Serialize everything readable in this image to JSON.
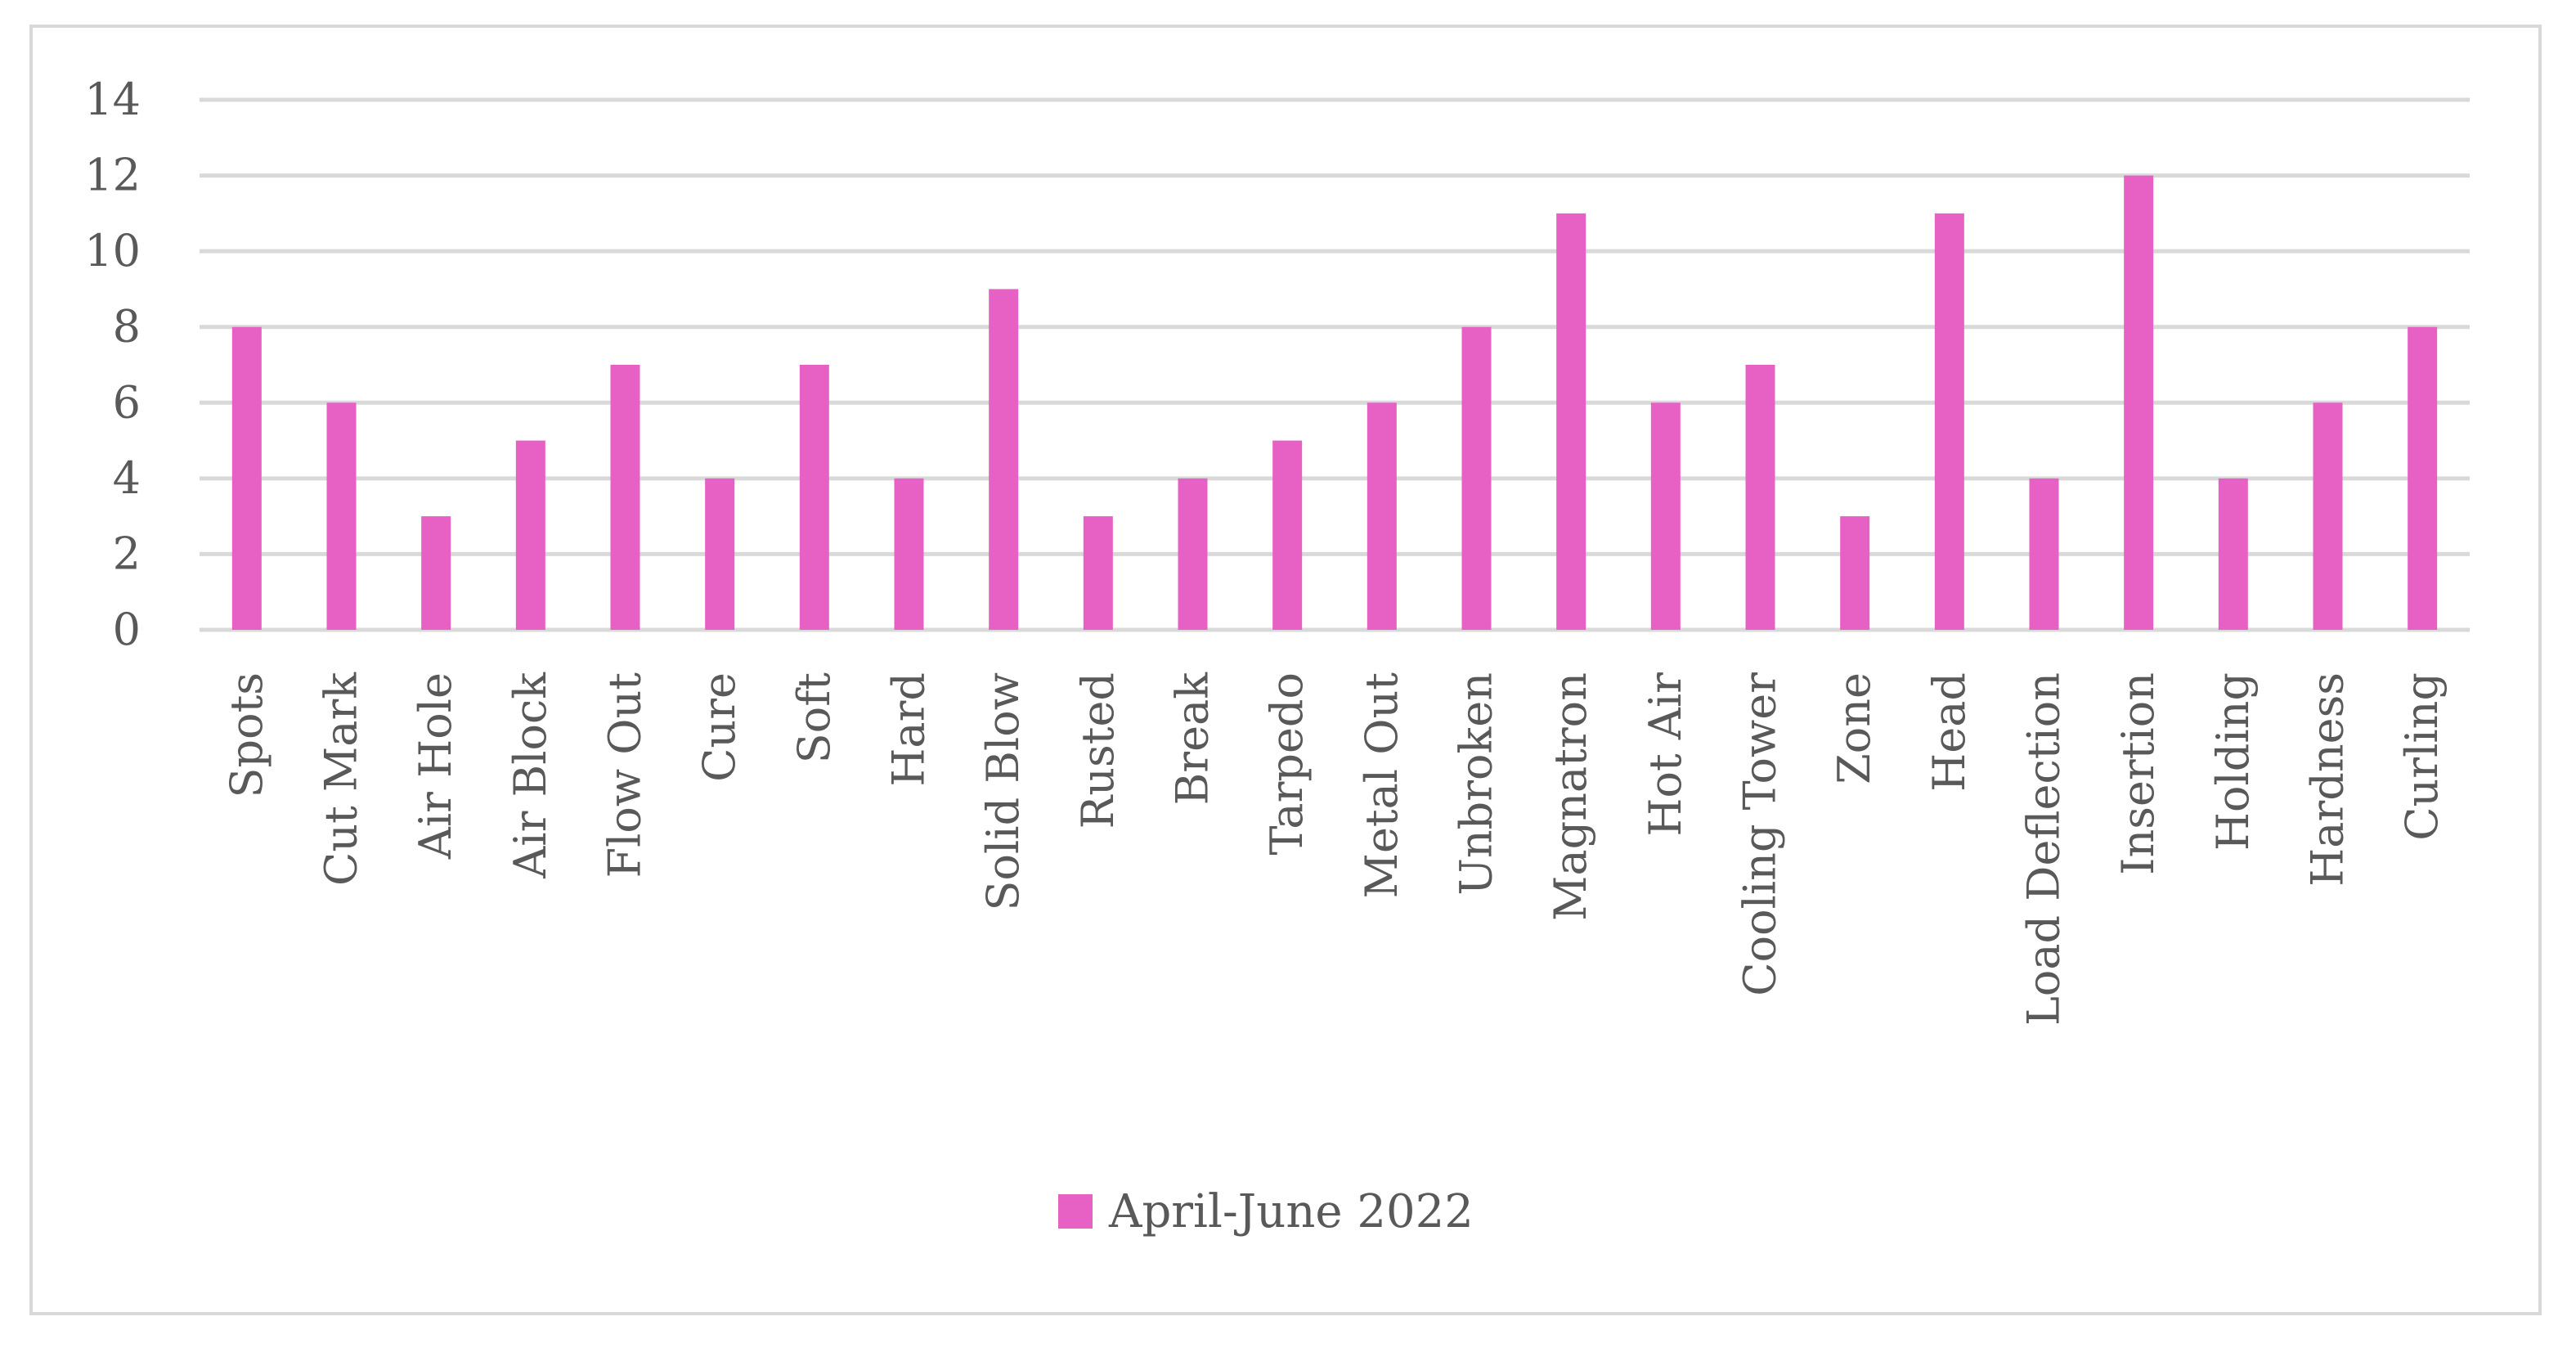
{
  "chart_data": {
    "type": "bar",
    "title": "",
    "xlabel": "",
    "ylabel": "",
    "ylim": [
      0,
      14
    ],
    "yticks": [
      0,
      2,
      4,
      6,
      8,
      10,
      12,
      14
    ],
    "grid": true,
    "legend_position": "bottom",
    "categories": [
      "Spots",
      "Cut Mark",
      "Air Hole",
      "Air Block",
      "Flow Out",
      "Cure",
      "Soft",
      "Hard",
      "Solid Blow",
      "Rusted",
      "Break",
      "Tarpedo",
      "Metal Out",
      "Unbroken",
      "Magnatron",
      "Hot Air",
      "Cooling Tower",
      "Zone",
      "Head",
      "Load Deflection",
      "Insertion",
      "Holding",
      "Hardness",
      "Curling"
    ],
    "series": [
      {
        "name": "April-June 2022",
        "color": "#e661c3",
        "values": [
          8,
          6,
          3,
          5,
          7,
          4,
          7,
          4,
          9,
          3,
          4,
          5,
          6,
          8,
          11,
          6,
          7,
          3,
          11,
          4,
          12,
          4,
          6,
          8
        ]
      }
    ]
  }
}
